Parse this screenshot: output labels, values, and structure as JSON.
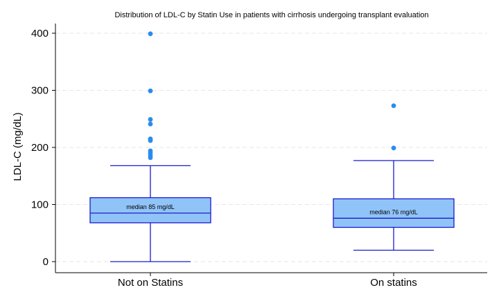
{
  "chart_data": {
    "type": "box",
    "title": "Distribution of LDL-C by Statin Use in patients with cirrhosis undergoing transplant evaluation",
    "xlabel": "",
    "ylabel": "LDL-C (mg/dL)",
    "ylim": [
      -20,
      420
    ],
    "yticks": [
      0,
      100,
      200,
      300,
      400
    ],
    "grid": true,
    "categories": [
      "Not on Statins",
      "On statins"
    ],
    "series": [
      {
        "category": "Not on Statins",
        "whisker_low": 0,
        "q1": 68,
        "median": 85,
        "q3": 112,
        "whisker_high": 168,
        "outliers": [
          182,
          186,
          190,
          194,
          212,
          215,
          241,
          249,
          299,
          399
        ],
        "median_label": "median 85 mg/dL"
      },
      {
        "category": "On statins",
        "whisker_low": 20,
        "q1": 60,
        "median": 76,
        "q3": 110,
        "whisker_high": 177,
        "outliers": [
          199,
          273
        ],
        "median_label": "median 76 mg/dL"
      }
    ],
    "colors": {
      "box_fill": "#90c4f8",
      "box_stroke": "#1a1acd",
      "outlier": "#2a8cee",
      "grid": "#e6e6e6",
      "axis": "#000000"
    }
  }
}
